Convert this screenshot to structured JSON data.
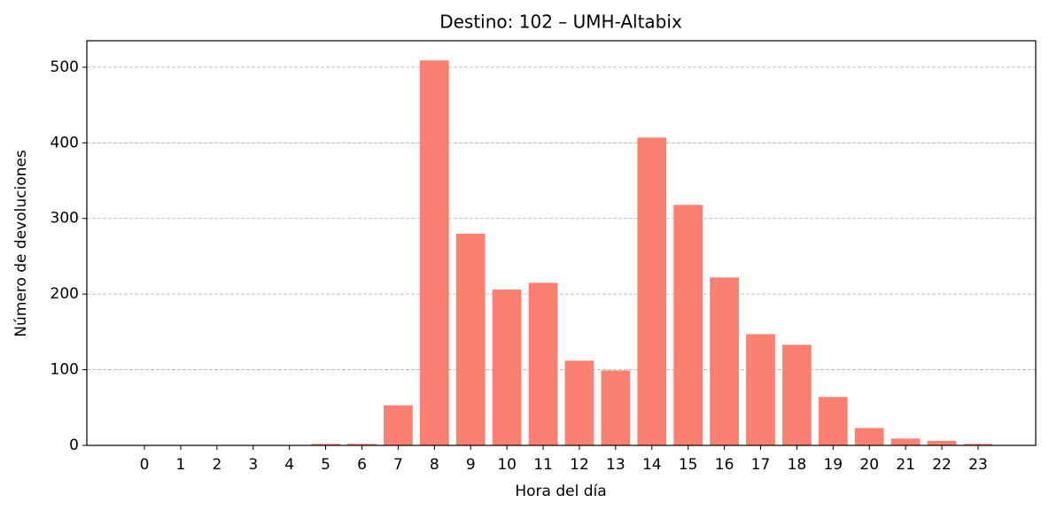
{
  "chart_data": {
    "type": "bar",
    "title": "Destino: 102 – UMH-Altabix",
    "x_label": "Hora del día",
    "y_label": "Número de devoluciones",
    "categories": [
      "0",
      "1",
      "2",
      "3",
      "4",
      "5",
      "6",
      "7",
      "8",
      "9",
      "10",
      "11",
      "12",
      "13",
      "14",
      "15",
      "16",
      "17",
      "18",
      "19",
      "20",
      "21",
      "22",
      "23"
    ],
    "values": [
      0,
      0,
      0,
      0,
      0,
      2,
      2,
      53,
      509,
      280,
      206,
      215,
      112,
      99,
      407,
      318,
      222,
      147,
      133,
      64,
      23,
      9,
      6,
      2
    ],
    "color": "#fa8072",
    "ylim": [
      0,
      535
    ],
    "yticks": [
      0,
      100,
      200,
      300,
      400,
      500
    ],
    "grid": true
  }
}
